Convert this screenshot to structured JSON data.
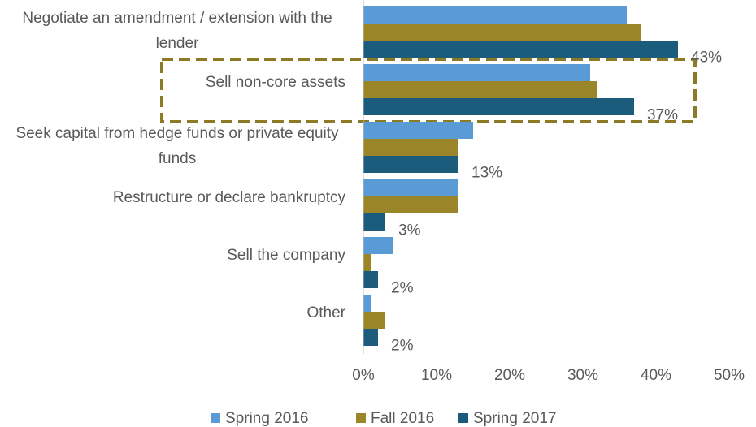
{
  "chart_data": {
    "type": "bar",
    "orientation": "horizontal",
    "categories": [
      "Negotiate an amendment /  extension with the lender",
      "Sell non-core assets",
      "Seek capital from hedge funds or private equity funds",
      "Restructure or declare bankruptcy",
      "Sell the company",
      "Other"
    ],
    "series": [
      {
        "name": "Spring 2016",
        "color": "#5b9bd5",
        "values": [
          36,
          31,
          15,
          13,
          4,
          1
        ]
      },
      {
        "name": "Fall 2016",
        "color": "#9a8629",
        "values": [
          38,
          32,
          13,
          13,
          1,
          3
        ]
      },
      {
        "name": "Spring 2017",
        "color": "#1b5b7c",
        "values": [
          43,
          37,
          13,
          3,
          2,
          2
        ],
        "value_labels": [
          "43%",
          "37%",
          "13%",
          "3%",
          "2%",
          "2%"
        ]
      }
    ],
    "xlim": [
      0,
      50
    ],
    "xticks": [
      {
        "value": 0,
        "label": "0%"
      },
      {
        "value": 10,
        "label": "10%"
      },
      {
        "value": 20,
        "label": "20%"
      },
      {
        "value": 30,
        "label": "30%"
      },
      {
        "value": 40,
        "label": "40%"
      },
      {
        "value": 50,
        "label": "50%"
      }
    ],
    "grid": false,
    "legend": "bottom"
  }
}
